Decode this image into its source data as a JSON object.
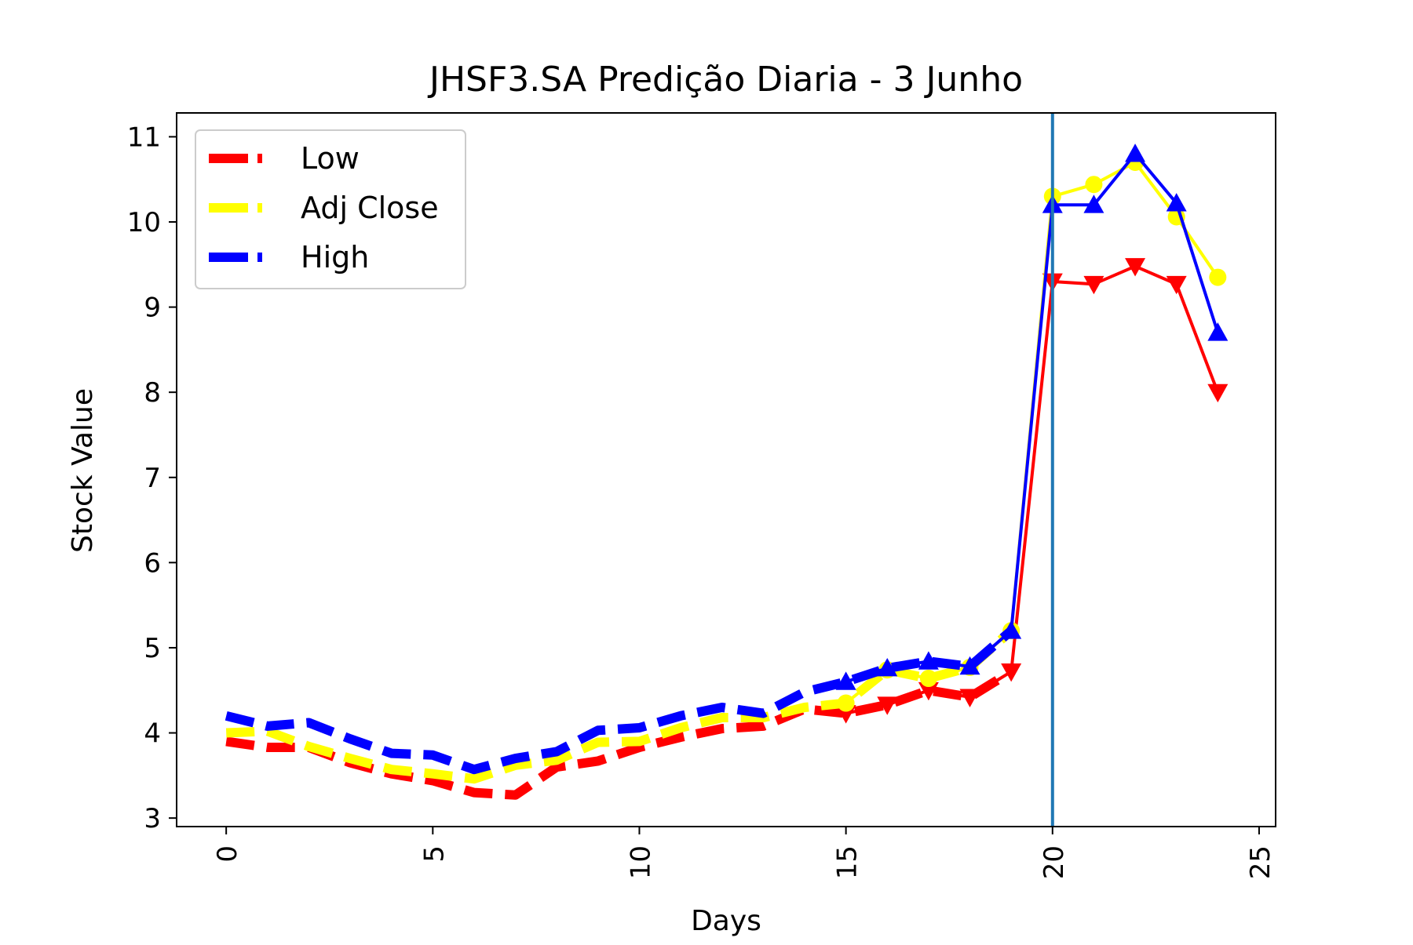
{
  "chart_data": {
    "type": "line",
    "title": "JHSF3.SA Predição Diaria - 3 Junho",
    "xlabel": "Days",
    "ylabel": "Stock Value",
    "xlim": [
      -1.2,
      25.4
    ],
    "ylim": [
      2.9,
      11.28
    ],
    "xticks": [
      0,
      5,
      10,
      15,
      20,
      25
    ],
    "yticks": [
      3,
      4,
      5,
      6,
      7,
      8,
      9,
      10,
      11
    ],
    "grid": false,
    "legend_position": "upper left",
    "vertical_line": {
      "x": 20,
      "color": "#1f77b4"
    },
    "series": [
      {
        "name": "Low",
        "color": "#ff0000",
        "history_x": [
          0,
          1,
          2,
          3,
          4,
          5,
          6,
          7,
          8,
          9,
          10,
          11,
          12,
          13,
          14,
          15,
          16,
          17,
          18,
          19
        ],
        "history": [
          3.9,
          3.83,
          3.83,
          3.65,
          3.52,
          3.44,
          3.3,
          3.27,
          3.6,
          3.67,
          3.83,
          3.95,
          4.05,
          4.08,
          4.28,
          4.23,
          4.33,
          4.5,
          4.42,
          4.72
        ],
        "fitted_x": [
          15,
          16,
          17,
          18,
          19,
          20
        ],
        "fitted": [
          4.23,
          4.33,
          4.5,
          4.42,
          4.72,
          9.3
        ],
        "forecast_x": [
          20,
          21,
          22,
          23,
          24
        ],
        "forecast": [
          9.3,
          9.27,
          9.48,
          9.27,
          8.0
        ],
        "marker": "triangle-down"
      },
      {
        "name": "Adj Close",
        "color": "#ffff00",
        "history_x": [
          0,
          1,
          2,
          3,
          4,
          5,
          6,
          7,
          8,
          9,
          10,
          11,
          12,
          13,
          14,
          15,
          16,
          17,
          18,
          19
        ],
        "history": [
          4.0,
          4.02,
          3.84,
          3.7,
          3.57,
          3.52,
          3.46,
          3.62,
          3.68,
          3.89,
          3.9,
          4.06,
          4.18,
          4.18,
          4.3,
          4.35,
          4.74,
          4.64,
          4.77,
          5.2
        ],
        "fitted_x": [
          15,
          16,
          17,
          18,
          19,
          20
        ],
        "fitted": [
          4.35,
          4.74,
          4.64,
          4.77,
          5.2,
          10.3
        ],
        "forecast_x": [
          20,
          21,
          22,
          23,
          24
        ],
        "forecast": [
          10.3,
          10.44,
          10.7,
          10.06,
          9.35
        ],
        "marker": "circle"
      },
      {
        "name": "High",
        "color": "#0000ff",
        "history_x": [
          0,
          1,
          2,
          3,
          4,
          5,
          6,
          7,
          8,
          9,
          10,
          11,
          12,
          13,
          14,
          15,
          16,
          17,
          18,
          19
        ],
        "history": [
          4.2,
          4.08,
          4.12,
          3.93,
          3.76,
          3.74,
          3.57,
          3.7,
          3.78,
          4.03,
          4.06,
          4.2,
          4.3,
          4.23,
          4.48,
          4.6,
          4.76,
          4.84,
          4.78,
          5.2
        ],
        "fitted_x": [
          15,
          16,
          17,
          18,
          19,
          20
        ],
        "fitted": [
          4.6,
          4.76,
          4.84,
          4.78,
          5.2,
          10.2
        ],
        "forecast_x": [
          20,
          21,
          22,
          23,
          24
        ],
        "forecast": [
          10.2,
          10.2,
          10.8,
          10.22,
          8.7
        ],
        "marker": "triangle-up"
      }
    ]
  }
}
